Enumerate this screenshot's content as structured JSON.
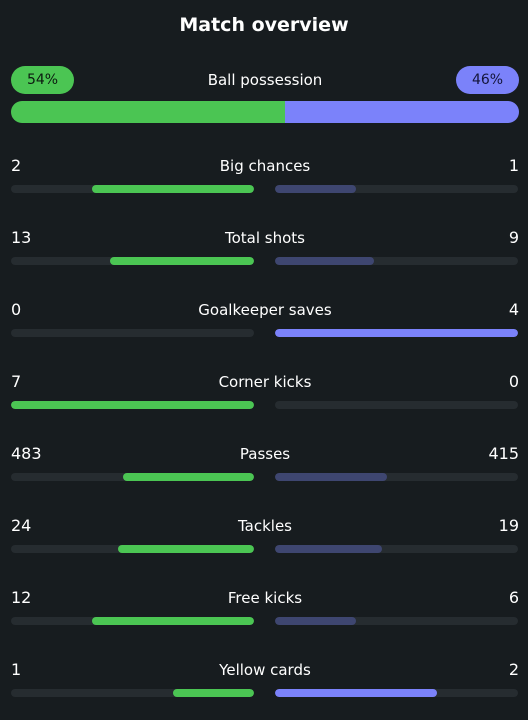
{
  "title": "Match overview",
  "colors": {
    "home": "#4bc553",
    "away_strong": "#7b82fa",
    "away_weak": "#3e4670",
    "track": "#262c30"
  },
  "possession": {
    "label": "Ball possession",
    "home_text": "54%",
    "away_text": "46%",
    "home": 54,
    "away": 46
  },
  "stats": [
    {
      "label": "Big chances",
      "home": "2",
      "away": "1",
      "home_share": 0.667,
      "away_share": 0.333
    },
    {
      "label": "Total shots",
      "home": "13",
      "away": "9",
      "home_share": 0.591,
      "away_share": 0.409
    },
    {
      "label": "Goalkeeper saves",
      "home": "0",
      "away": "4",
      "home_share": 0,
      "away_share": 1
    },
    {
      "label": "Corner kicks",
      "home": "7",
      "away": "0",
      "home_share": 1,
      "away_share": 0
    },
    {
      "label": "Passes",
      "home": "483",
      "away": "415",
      "home_share": 0.538,
      "away_share": 0.462
    },
    {
      "label": "Tackles",
      "home": "24",
      "away": "19",
      "home_share": 0.558,
      "away_share": 0.442
    },
    {
      "label": "Free kicks",
      "home": "12",
      "away": "6",
      "home_share": 0.667,
      "away_share": 0.333
    },
    {
      "label": "Yellow cards",
      "home": "1",
      "away": "2",
      "home_share": 0.333,
      "away_share": 0.667
    }
  ]
}
